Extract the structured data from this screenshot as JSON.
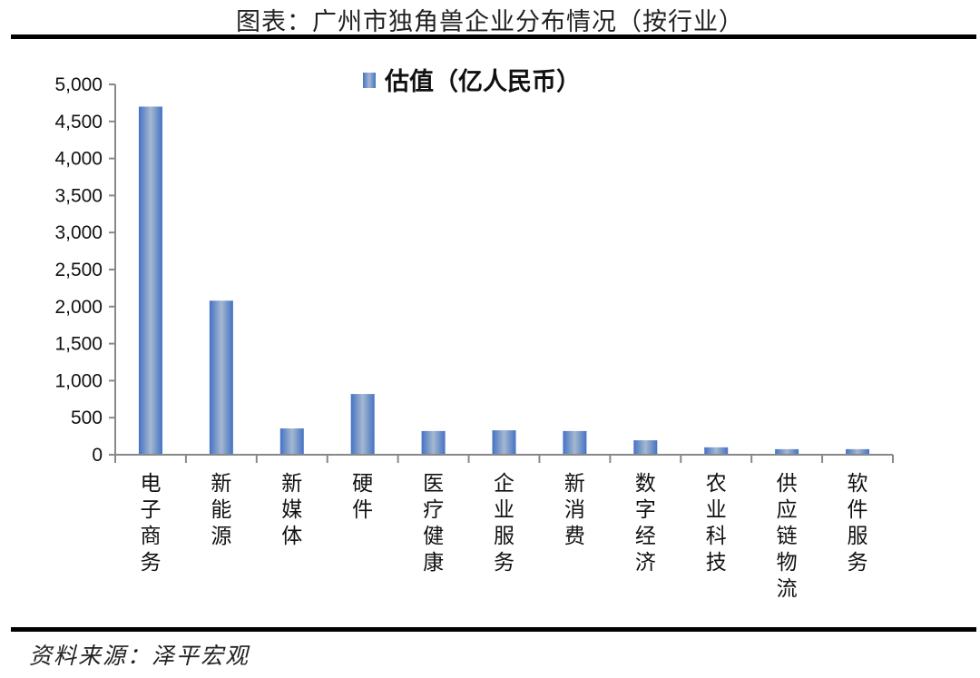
{
  "header": {
    "title": "图表：广州市独角兽企业分布情况（按行业）"
  },
  "footer": {
    "source": "资料来源：泽平宏观"
  },
  "colors": {
    "bar_edge": "#4472c4",
    "bar_center": "#a5b8d0",
    "axis": "#888888",
    "rule": "#000000"
  },
  "chart_data": {
    "type": "bar",
    "title": "图表：广州市独角兽企业分布情况（按行业）",
    "xlabel": "",
    "ylabel": "",
    "legend": [
      "估值（亿人民币）"
    ],
    "legend_position": "top",
    "grid": false,
    "ylim": [
      0,
      5000
    ],
    "yticks": [
      0,
      500,
      1000,
      1500,
      2000,
      2500,
      3000,
      3500,
      4000,
      4500,
      5000
    ],
    "ytick_labels": [
      "0",
      "500",
      "1,000",
      "1,500",
      "2,000",
      "2,500",
      "3,000",
      "3,500",
      "4,000",
      "4,500",
      "5,000"
    ],
    "categories": [
      "电子商务",
      "新能源",
      "新媒体",
      "硬件",
      "医疗健康",
      "企业服务",
      "新消费",
      "数字经济",
      "农业科技",
      "供应链物流",
      "软件服务"
    ],
    "series": [
      {
        "name": "估值（亿人民币）",
        "values": [
          4700,
          2080,
          355,
          820,
          320,
          330,
          320,
          195,
          100,
          75,
          75
        ]
      }
    ]
  }
}
